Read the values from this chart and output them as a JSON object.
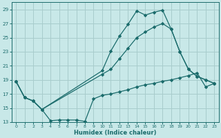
{
  "xlabel": "Humidex (Indice chaleur)",
  "bg_color": "#c8e8e8",
  "grid_color": "#a8cccc",
  "line_color": "#1a6b6b",
  "xlim": [
    -0.5,
    23.5
  ],
  "ylim": [
    13,
    30
  ],
  "yticks": [
    13,
    15,
    17,
    19,
    21,
    23,
    25,
    27,
    29
  ],
  "xticks": [
    0,
    1,
    2,
    3,
    4,
    5,
    6,
    7,
    8,
    9,
    10,
    11,
    12,
    13,
    14,
    15,
    16,
    17,
    18,
    19,
    20,
    21,
    22,
    23
  ],
  "series": [
    {
      "x": [
        0,
        1,
        2,
        3,
        10,
        11,
        12,
        13,
        14,
        15,
        16,
        17,
        18,
        19,
        20,
        21,
        22,
        23
      ],
      "y": [
        18.8,
        16.5,
        16.0,
        14.8,
        20.3,
        23.1,
        25.2,
        26.9,
        28.8,
        28.2,
        28.6,
        28.9,
        26.2,
        23.0,
        20.5,
        19.5,
        19.0,
        18.5
      ]
    },
    {
      "x": [
        0,
        1,
        2,
        3,
        10,
        11,
        12,
        13,
        14,
        15,
        16,
        17,
        18,
        19,
        20,
        21,
        22,
        23
      ],
      "y": [
        18.8,
        16.5,
        16.0,
        14.8,
        19.8,
        20.5,
        22.0,
        23.5,
        25.0,
        25.8,
        26.5,
        27.0,
        26.2,
        23.0,
        20.5,
        19.5,
        19.0,
        18.5
      ]
    },
    {
      "x": [
        0,
        1,
        2,
        3,
        4,
        5,
        6,
        7,
        8,
        9,
        10,
        11,
        12,
        13,
        14,
        15,
        16,
        17,
        18,
        19,
        20,
        21,
        22,
        23
      ],
      "y": [
        18.8,
        16.5,
        16.0,
        14.8,
        13.2,
        13.3,
        13.3,
        13.3,
        13.1,
        16.3,
        16.8,
        17.0,
        17.3,
        17.6,
        18.0,
        18.3,
        18.5,
        18.8,
        19.0,
        19.3,
        19.6,
        20.0,
        18.0,
        18.5
      ]
    }
  ]
}
